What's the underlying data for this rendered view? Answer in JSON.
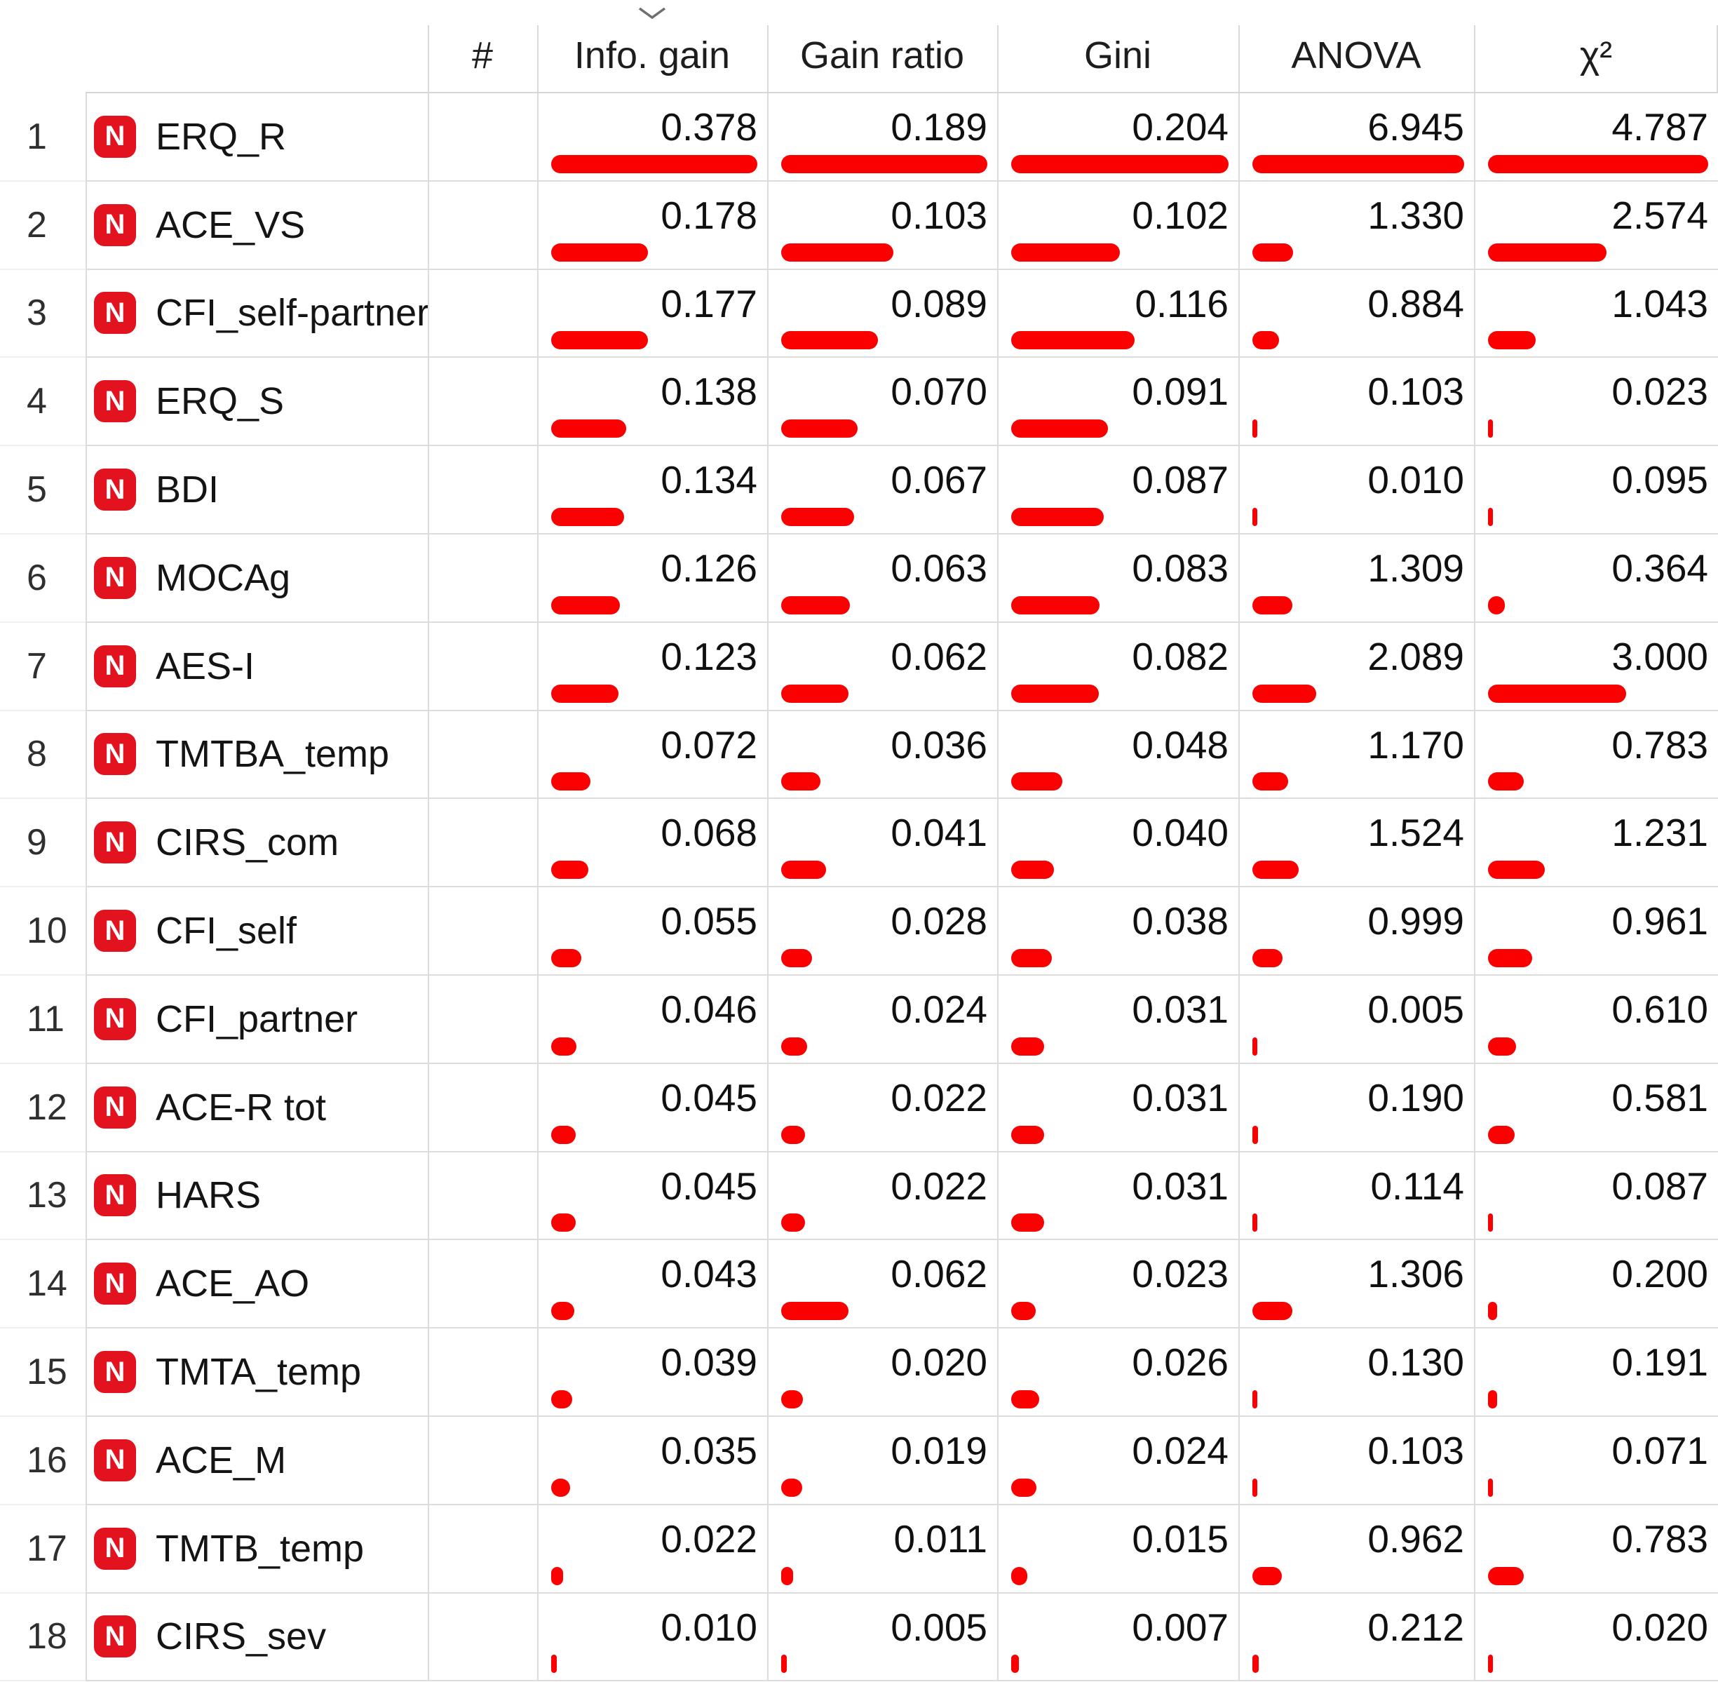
{
  "widget": "rank-feature-scores",
  "colors": {
    "bar": "#fa0000",
    "variable_icon_bg": "#e2121f",
    "grid_line": "#dcdcdc"
  },
  "sort": {
    "column": "Info. gain",
    "direction": "descending"
  },
  "table": {
    "hash_header": "#",
    "variable_type_icon": "N",
    "metrics": [
      {
        "key": "info_gain",
        "label": "Info. gain"
      },
      {
        "key": "gain_ratio",
        "label": "Gain ratio"
      },
      {
        "key": "gini",
        "label": "Gini"
      },
      {
        "key": "anova",
        "label": "ANOVA"
      },
      {
        "key": "chi2",
        "label": "χ²"
      }
    ],
    "rows": [
      {
        "rank": "1",
        "name": "ERQ_R",
        "values": {
          "info_gain": "0.378",
          "gain_ratio": "0.189",
          "gini": "0.204",
          "anova": "6.945",
          "chi2": "4.787"
        }
      },
      {
        "rank": "2",
        "name": "ACE_VS",
        "values": {
          "info_gain": "0.178",
          "gain_ratio": "0.103",
          "gini": "0.102",
          "anova": "1.330",
          "chi2": "2.574"
        }
      },
      {
        "rank": "3",
        "name": "CFI_self-partner",
        "values": {
          "info_gain": "0.177",
          "gain_ratio": "0.089",
          "gini": "0.116",
          "anova": "0.884",
          "chi2": "1.043"
        }
      },
      {
        "rank": "4",
        "name": "ERQ_S",
        "values": {
          "info_gain": "0.138",
          "gain_ratio": "0.070",
          "gini": "0.091",
          "anova": "0.103",
          "chi2": "0.023"
        }
      },
      {
        "rank": "5",
        "name": "BDI",
        "values": {
          "info_gain": "0.134",
          "gain_ratio": "0.067",
          "gini": "0.087",
          "anova": "0.010",
          "chi2": "0.095"
        }
      },
      {
        "rank": "6",
        "name": "MOCAg",
        "values": {
          "info_gain": "0.126",
          "gain_ratio": "0.063",
          "gini": "0.083",
          "anova": "1.309",
          "chi2": "0.364"
        }
      },
      {
        "rank": "7",
        "name": "AES-I",
        "values": {
          "info_gain": "0.123",
          "gain_ratio": "0.062",
          "gini": "0.082",
          "anova": "2.089",
          "chi2": "3.000"
        }
      },
      {
        "rank": "8",
        "name": "TMTBA_temp",
        "values": {
          "info_gain": "0.072",
          "gain_ratio": "0.036",
          "gini": "0.048",
          "anova": "1.170",
          "chi2": "0.783"
        }
      },
      {
        "rank": "9",
        "name": "CIRS_com",
        "values": {
          "info_gain": "0.068",
          "gain_ratio": "0.041",
          "gini": "0.040",
          "anova": "1.524",
          "chi2": "1.231"
        }
      },
      {
        "rank": "10",
        "name": "CFI_self",
        "values": {
          "info_gain": "0.055",
          "gain_ratio": "0.028",
          "gini": "0.038",
          "anova": "0.999",
          "chi2": "0.961"
        }
      },
      {
        "rank": "11",
        "name": "CFI_partner",
        "values": {
          "info_gain": "0.046",
          "gain_ratio": "0.024",
          "gini": "0.031",
          "anova": "0.005",
          "chi2": "0.610"
        }
      },
      {
        "rank": "12",
        "name": "ACE-R tot",
        "values": {
          "info_gain": "0.045",
          "gain_ratio": "0.022",
          "gini": "0.031",
          "anova": "0.190",
          "chi2": "0.581"
        }
      },
      {
        "rank": "13",
        "name": "HARS",
        "values": {
          "info_gain": "0.045",
          "gain_ratio": "0.022",
          "gini": "0.031",
          "anova": "0.114",
          "chi2": "0.087"
        }
      },
      {
        "rank": "14",
        "name": "ACE_AO",
        "values": {
          "info_gain": "0.043",
          "gain_ratio": "0.062",
          "gini": "0.023",
          "anova": "1.306",
          "chi2": "0.200"
        }
      },
      {
        "rank": "15",
        "name": "TMTA_temp",
        "values": {
          "info_gain": "0.039",
          "gain_ratio": "0.020",
          "gini": "0.026",
          "anova": "0.130",
          "chi2": "0.191"
        }
      },
      {
        "rank": "16",
        "name": "ACE_M",
        "values": {
          "info_gain": "0.035",
          "gain_ratio": "0.019",
          "gini": "0.024",
          "anova": "0.103",
          "chi2": "0.071"
        }
      },
      {
        "rank": "17",
        "name": "TMTB_temp",
        "values": {
          "info_gain": "0.022",
          "gain_ratio": "0.011",
          "gini": "0.015",
          "anova": "0.962",
          "chi2": "0.783"
        }
      },
      {
        "rank": "18",
        "name": "CIRS_sev",
        "values": {
          "info_gain": "0.010",
          "gain_ratio": "0.005",
          "gini": "0.007",
          "anova": "0.212",
          "chi2": "0.020"
        }
      }
    ]
  }
}
